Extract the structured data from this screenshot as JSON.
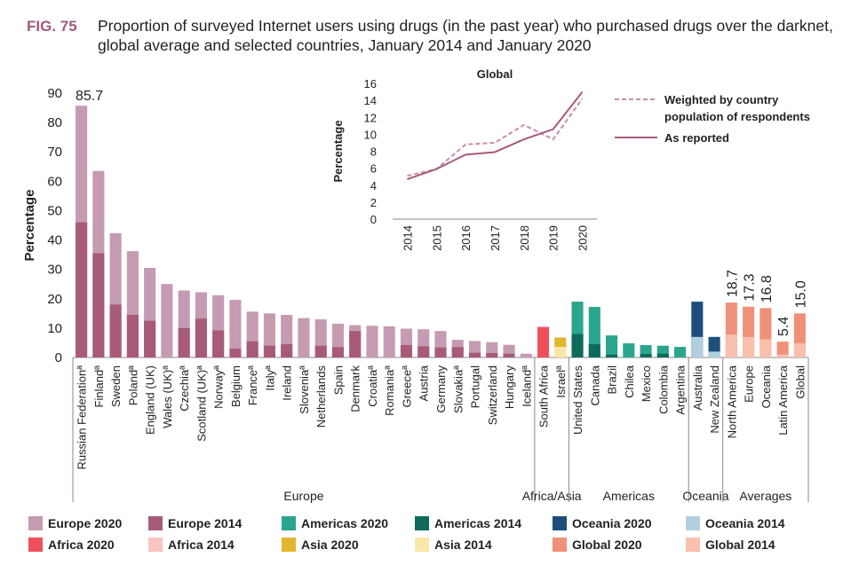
{
  "figure": {
    "label": "FIG. 75",
    "title": "Proportion of surveyed Internet users using drugs (in the past year) who purchased drugs over the darknet, global average and selected countries, January 2014 and January 2020"
  },
  "colors": {
    "europe_2020": "#c49bb2",
    "europe_2014": "#a85a7a",
    "americas_2020": "#2aa58e",
    "americas_2014": "#0e6b5c",
    "oceania_2020": "#1d4f7a",
    "oceania_2014": "#b2cfe0",
    "africa_2020": "#ef4f5b",
    "africa_2014": "#f9c3c0",
    "asia_2020": "#e0b62e",
    "asia_2014": "#f8e7a8",
    "global_2020": "#f19079",
    "global_2014": "#f8c0ad"
  },
  "chart_data": [
    {
      "type": "bar",
      "ylabel": "Percentage",
      "ylim": [
        0,
        90
      ],
      "yticks": [
        0,
        10,
        20,
        30,
        40,
        50,
        60,
        70,
        80,
        90
      ],
      "categories": [
        {
          "label": "Russian Federationª",
          "group": "europe",
          "v2020": 85.7,
          "v2014": 46.0,
          "data_label": "85.7"
        },
        {
          "label": "Finlandª",
          "group": "europe",
          "v2020": 63.5,
          "v2014": 35.5
        },
        {
          "label": "Sweden",
          "group": "europe",
          "v2020": 42.3,
          "v2014": 18.0
        },
        {
          "label": "Polandª",
          "group": "europe",
          "v2020": 36.2,
          "v2014": 14.5
        },
        {
          "label": "England (UK)",
          "group": "europe",
          "v2020": 30.5,
          "v2014": 12.5
        },
        {
          "label": "Wales (UK)ª",
          "group": "europe",
          "v2020": 25.0,
          "v2014": 0
        },
        {
          "label": "Czechiaª",
          "group": "europe",
          "v2020": 22.8,
          "v2014": 10.0
        },
        {
          "label": "Scotland (UK)ª",
          "group": "europe",
          "v2020": 22.2,
          "v2014": 13.2
        },
        {
          "label": "Norwayª",
          "group": "europe",
          "v2020": 21.2,
          "v2014": 9.2
        },
        {
          "label": "Belgium",
          "group": "europe",
          "v2020": 19.6,
          "v2014": 3.0
        },
        {
          "label": "Franceª",
          "group": "europe",
          "v2020": 15.6,
          "v2014": 5.5
        },
        {
          "label": "Italyª",
          "group": "europe",
          "v2020": 15.0,
          "v2014": 4.0
        },
        {
          "label": "Ireland",
          "group": "europe",
          "v2020": 14.5,
          "v2014": 4.5
        },
        {
          "label": "Sloveniaª",
          "group": "europe",
          "v2020": 13.4,
          "v2014": 0
        },
        {
          "label": "Netherlands",
          "group": "europe",
          "v2020": 13.0,
          "v2014": 4.0
        },
        {
          "label": "Spain",
          "group": "europe",
          "v2020": 11.5,
          "v2014": 3.5
        },
        {
          "label": "Denmark",
          "group": "europe",
          "v2020": 11.0,
          "v2014": 9.0
        },
        {
          "label": "Croatiaª",
          "group": "europe",
          "v2020": 10.8,
          "v2014": 0
        },
        {
          "label": "Romaniaª",
          "group": "europe",
          "v2020": 10.6,
          "v2014": 0
        },
        {
          "label": "Greeceª",
          "group": "europe",
          "v2020": 9.8,
          "v2014": 4.2
        },
        {
          "label": "Austria",
          "group": "europe",
          "v2020": 9.6,
          "v2014": 3.8
        },
        {
          "label": "Germany",
          "group": "europe",
          "v2020": 9.0,
          "v2014": 3.4
        },
        {
          "label": "Slovakiaª",
          "group": "europe",
          "v2020": 6.0,
          "v2014": 3.5
        },
        {
          "label": "Portugal",
          "group": "europe",
          "v2020": 5.6,
          "v2014": 1.6
        },
        {
          "label": "Switzerland",
          "group": "europe",
          "v2020": 5.2,
          "v2014": 1.5
        },
        {
          "label": "Hungary",
          "group": "europe",
          "v2020": 4.3,
          "v2014": 1.3
        },
        {
          "label": "Icelandª",
          "group": "europe",
          "v2020": 1.3,
          "v2014": 0
        },
        {
          "label": "South Africa",
          "group": "africa",
          "v2020": 10.4,
          "v2014": 0
        },
        {
          "label": "Israelª",
          "group": "asia",
          "v2020": 6.8,
          "v2014": 3.6
        },
        {
          "label": "United States",
          "group": "americas",
          "v2020": 19.0,
          "v2014": 8.0
        },
        {
          "label": "Canada",
          "group": "americas",
          "v2020": 17.2,
          "v2014": 4.5
        },
        {
          "label": "Brazil",
          "group": "americas",
          "v2020": 7.5,
          "v2014": 1.0
        },
        {
          "label": "Chilea",
          "group": "americas",
          "v2020": 4.8,
          "v2014": 0
        },
        {
          "label": "Mexico",
          "group": "americas",
          "v2020": 4.2,
          "v2014": 1.2
        },
        {
          "label": "Colombia",
          "group": "americas",
          "v2020": 4.0,
          "v2014": 1.3
        },
        {
          "label": "Argentina",
          "group": "americas",
          "v2020": 3.6,
          "v2014": 0
        },
        {
          "label": "Australia",
          "group": "oceania",
          "v2020": 19.0,
          "v2014": 7.0
        },
        {
          "label": "New Zealand",
          "group": "oceania",
          "v2020": 7.0,
          "v2014": 2.0
        },
        {
          "label": "North America",
          "group": "global",
          "v2020": 18.7,
          "v2014": 7.8,
          "data_label": "18.7"
        },
        {
          "label": "Europe",
          "group": "global",
          "v2020": 17.3,
          "v2014": 7.0,
          "data_label": "17.3"
        },
        {
          "label": "Oceania",
          "group": "global",
          "v2020": 16.8,
          "v2014": 6.2,
          "data_label": "16.8"
        },
        {
          "label": "Latin America",
          "group": "global",
          "v2020": 5.4,
          "v2014": 1.0,
          "data_label": "5.4"
        },
        {
          "label": "Global",
          "group": "global",
          "v2020": 15.0,
          "v2014": 4.8,
          "data_label": "15.0"
        }
      ],
      "region_labels": [
        {
          "label": "Europe",
          "from": 0,
          "to": 26
        },
        {
          "label": "Africa/Asia",
          "from": 27,
          "to": 28
        },
        {
          "label": "Americas",
          "from": 29,
          "to": 35
        },
        {
          "label": "Oceania",
          "from": 36,
          "to": 37
        },
        {
          "label": "Averages",
          "from": 38,
          "to": 42
        }
      ],
      "legend": [
        {
          "label": "Europe 2020",
          "color_key": "europe_2020"
        },
        {
          "label": "Europe 2014",
          "color_key": "europe_2014"
        },
        {
          "label": "Americas 2020",
          "color_key": "americas_2020"
        },
        {
          "label": "Americas 2014",
          "color_key": "americas_2014"
        },
        {
          "label": "Oceania 2020",
          "color_key": "oceania_2020"
        },
        {
          "label": "Oceania 2014",
          "color_key": "oceania_2014"
        },
        {
          "label": "Africa 2020",
          "color_key": "africa_2020"
        },
        {
          "label": "Africa 2014",
          "color_key": "africa_2014"
        },
        {
          "label": "Asia 2020",
          "color_key": "asia_2020"
        },
        {
          "label": "Asia 2014",
          "color_key": "asia_2014"
        },
        {
          "label": "Global 2020",
          "color_key": "global_2020"
        },
        {
          "label": "Global 2014",
          "color_key": "global_2014"
        }
      ]
    },
    {
      "type": "line",
      "title": "Global",
      "ylabel": "Percentage",
      "ylim": [
        0,
        16
      ],
      "yticks": [
        0,
        2,
        4,
        6,
        8,
        10,
        12,
        14,
        16
      ],
      "x": [
        "2014",
        "2015",
        "2016",
        "2017",
        "2018",
        "2019",
        "2020"
      ],
      "series": [
        {
          "name": "Weighted by country population of respondents",
          "style": "dashed",
          "values": [
            5.1,
            5.9,
            8.8,
            9.0,
            11.1,
            9.4,
            14.2
          ]
        },
        {
          "name": "As reported",
          "style": "solid",
          "values": [
            4.7,
            5.9,
            7.6,
            7.9,
            9.4,
            10.6,
            15.0
          ]
        }
      ]
    }
  ]
}
